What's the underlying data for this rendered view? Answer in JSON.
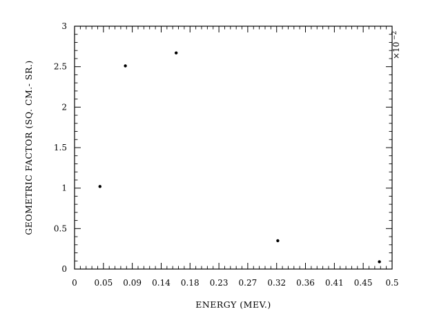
{
  "chart_data": {
    "type": "scatter",
    "xlabel": "ENERGY (MEV.)",
    "ylabel": "GEOMETRIC FACTOR (SQ. CM.- SR.)",
    "y_multiplier": {
      "base": "×10",
      "exponent": "−2"
    },
    "xlim": [
      0,
      0.5
    ],
    "ylim": [
      0,
      3
    ],
    "x_tick_values": [
      0,
      0.0455,
      0.0909,
      0.1364,
      0.1818,
      0.2273,
      0.2727,
      0.3182,
      0.3636,
      0.4091,
      0.4545,
      0.5
    ],
    "x_tick_labels": [
      "0",
      "0.05",
      "0.09",
      "0.14",
      "0.18",
      "0.23",
      "0.27",
      "0.32",
      "0.36",
      "0.41",
      "0.45",
      "0.5"
    ],
    "y_tick_values": [
      0,
      0.5,
      1,
      1.5,
      2,
      2.5,
      3
    ],
    "y_tick_labels": [
      "0",
      "0.5",
      "1",
      "1.5",
      "2",
      "2.5",
      "3"
    ],
    "grid": false,
    "series": [
      {
        "points": [
          {
            "x": 0.04,
            "y": 1.02
          },
          {
            "x": 0.08,
            "y": 2.51
          },
          {
            "x": 0.16,
            "y": 2.67
          },
          {
            "x": 0.32,
            "y": 0.35
          },
          {
            "x": 0.48,
            "y": 0.09
          }
        ]
      }
    ]
  }
}
